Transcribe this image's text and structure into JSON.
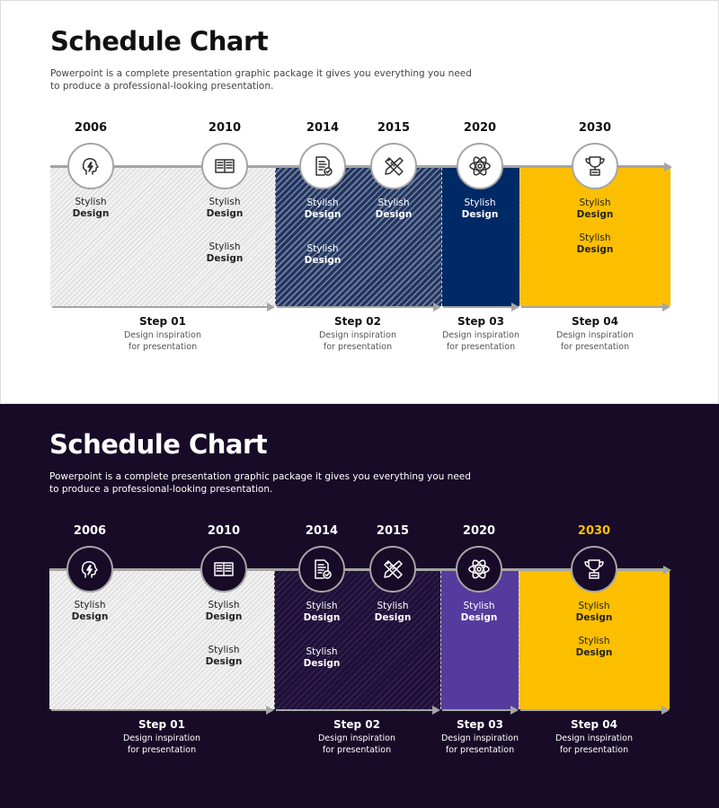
{
  "colors": {
    "light_bg": "#ffffff",
    "dark_bg": "#170b27",
    "navy": "#002a66",
    "purple": "#553b9e",
    "yellow": "#fcbf00",
    "line": "#a5a5a5"
  },
  "panels": [
    {
      "theme": "light",
      "title": "Schedule Chart",
      "description": "Powerpoint is a complete presentation graphic package it gives you everything you need to produce a professional-looking presentation.",
      "milestones": [
        {
          "year": "2006",
          "icon": "head-lightning-icon",
          "labels": [
            {
              "line1": "Stylish",
              "line2": "Design"
            }
          ]
        },
        {
          "year": "2010",
          "icon": "book-icon",
          "labels": [
            {
              "line1": "Stylish",
              "line2": "Design"
            },
            {
              "line1": "Stylish",
              "line2": "Design"
            }
          ]
        },
        {
          "year": "2014",
          "icon": "document-check-icon",
          "labels": [
            {
              "line1": "Stylish",
              "line2": "Design"
            },
            {
              "line1": "Stylish",
              "line2": "Design"
            }
          ]
        },
        {
          "year": "2015",
          "icon": "pencil-ruler-icon",
          "labels": [
            {
              "line1": "Stylish",
              "line2": "Design"
            }
          ]
        },
        {
          "year": "2020",
          "icon": "atom-icon",
          "labels": [
            {
              "line1": "Stylish",
              "line2": "Design"
            }
          ]
        },
        {
          "year": "2030",
          "icon": "trophy-icon",
          "labels": [
            {
              "line1": "Stylish",
              "line2": "Design"
            },
            {
              "line1": "Stylish",
              "line2": "Design"
            }
          ]
        }
      ],
      "steps": [
        {
          "name": "Step 01",
          "line1": "Design inspiration",
          "line2": "for presentation"
        },
        {
          "name": "Step 02",
          "line1": "Design inspiration",
          "line2": "for presentation"
        },
        {
          "name": "Step 03",
          "line1": "Design inspiration",
          "line2": "for presentation"
        },
        {
          "name": "Step 04",
          "line1": "Design inspiration",
          "line2": "for presentation"
        }
      ]
    },
    {
      "theme": "dark",
      "title": "Schedule Chart",
      "description": "Powerpoint is a complete presentation graphic package it gives you everything you need to produce a professional-looking presentation.",
      "milestones": [
        {
          "year": "2006",
          "icon": "head-lightning-icon",
          "labels": [
            {
              "line1": "Stylish",
              "line2": "Design"
            }
          ]
        },
        {
          "year": "2010",
          "icon": "book-icon",
          "labels": [
            {
              "line1": "Stylish",
              "line2": "Design"
            },
            {
              "line1": "Stylish",
              "line2": "Design"
            }
          ]
        },
        {
          "year": "2014",
          "icon": "document-check-icon",
          "labels": [
            {
              "line1": "Stylish",
              "line2": "Design"
            },
            {
              "line1": "Stylish",
              "line2": "Design"
            }
          ]
        },
        {
          "year": "2015",
          "icon": "pencil-ruler-icon",
          "labels": [
            {
              "line1": "Stylish",
              "line2": "Design"
            }
          ]
        },
        {
          "year": "2020",
          "icon": "atom-icon",
          "labels": [
            {
              "line1": "Stylish",
              "line2": "Design"
            }
          ]
        },
        {
          "year": "2030",
          "icon": "trophy-icon",
          "highlight": true,
          "labels": [
            {
              "line1": "Stylish",
              "line2": "Design"
            },
            {
              "line1": "Stylish",
              "line2": "Design"
            }
          ]
        }
      ],
      "steps": [
        {
          "name": "Step 01",
          "line1": "Design inspiration",
          "line2": "for presentation"
        },
        {
          "name": "Step 02",
          "line1": "Design inspiration",
          "line2": "for presentation"
        },
        {
          "name": "Step 03",
          "line1": "Design inspiration",
          "line2": "for presentation"
        },
        {
          "name": "Step 04",
          "line1": "Design inspiration",
          "line2": "for presentation"
        }
      ]
    }
  ]
}
